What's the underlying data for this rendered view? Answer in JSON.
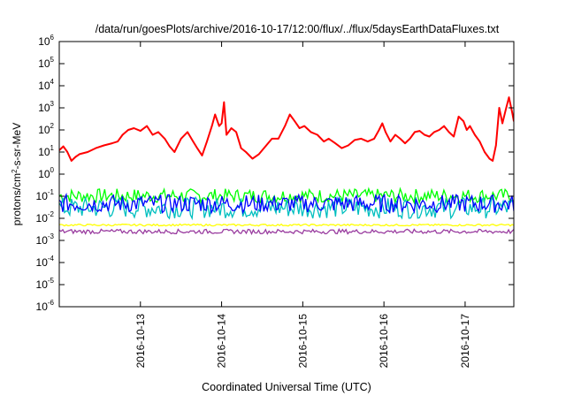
{
  "chart_data": {
    "type": "line",
    "title": "/data/run/goesPlots/archive/2016-10-17/12:00/flux/../flux/5daysEarthDataFluxes.txt",
    "xlabel": "Coordinated Universal Time (UTC)",
    "ylabel": {
      "pre": "protons/cm",
      "sup": "2",
      "post": "-s-sr-MeV"
    },
    "scale_y": "log",
    "xlim": [
      12.0,
      17.6
    ],
    "ylim_exp": [
      -6,
      6
    ],
    "y_ticks": [
      {
        "base": "10",
        "exp": "-6"
      },
      {
        "base": "10",
        "exp": "-5"
      },
      {
        "base": "10",
        "exp": "-4"
      },
      {
        "base": "10",
        "exp": "-3"
      },
      {
        "base": "10",
        "exp": "-2"
      },
      {
        "base": "10",
        "exp": "-1"
      },
      {
        "base": "10",
        "exp": "0"
      },
      {
        "base": "10",
        "exp": "1"
      },
      {
        "base": "10",
        "exp": "2"
      },
      {
        "base": "10",
        "exp": "3"
      },
      {
        "base": "10",
        "exp": "4"
      },
      {
        "base": "10",
        "exp": "5"
      },
      {
        "base": "10",
        "exp": "6"
      }
    ],
    "x_ticks": [
      {
        "value": 13,
        "label": "2016-10-13"
      },
      {
        "value": 14,
        "label": "2016-10-14"
      },
      {
        "value": 15,
        "label": "2016-10-15"
      },
      {
        "value": 16,
        "label": "2016-10-16"
      },
      {
        "value": 17,
        "label": "2016-10-17"
      }
    ],
    "grid": false,
    "legend": "none",
    "series": [
      {
        "color": "#ff0000",
        "points": [
          [
            12.0,
            12
          ],
          [
            12.05,
            18
          ],
          [
            12.1,
            10
          ],
          [
            12.15,
            4
          ],
          [
            12.2,
            6
          ],
          [
            12.25,
            8
          ],
          [
            12.35,
            10
          ],
          [
            12.45,
            15
          ],
          [
            12.55,
            20
          ],
          [
            12.65,
            25
          ],
          [
            12.72,
            30
          ],
          [
            12.78,
            60
          ],
          [
            12.85,
            100
          ],
          [
            12.92,
            120
          ],
          [
            13.0,
            90
          ],
          [
            13.08,
            150
          ],
          [
            13.15,
            60
          ],
          [
            13.22,
            80
          ],
          [
            13.3,
            40
          ],
          [
            13.36,
            18
          ],
          [
            13.42,
            10
          ],
          [
            13.5,
            40
          ],
          [
            13.58,
            80
          ],
          [
            13.65,
            30
          ],
          [
            13.7,
            15
          ],
          [
            13.76,
            7
          ],
          [
            13.82,
            30
          ],
          [
            13.88,
            150
          ],
          [
            13.92,
            500
          ],
          [
            13.97,
            150
          ],
          [
            14.0,
            200
          ],
          [
            14.03,
            1800
          ],
          [
            14.06,
            60
          ],
          [
            14.12,
            120
          ],
          [
            14.18,
            80
          ],
          [
            14.24,
            15
          ],
          [
            14.3,
            10
          ],
          [
            14.38,
            5
          ],
          [
            14.46,
            8
          ],
          [
            14.55,
            20
          ],
          [
            14.62,
            40
          ],
          [
            14.7,
            40
          ],
          [
            14.78,
            150
          ],
          [
            14.84,
            500
          ],
          [
            14.9,
            250
          ],
          [
            14.96,
            120
          ],
          [
            15.02,
            150
          ],
          [
            15.1,
            80
          ],
          [
            15.18,
            60
          ],
          [
            15.26,
            30
          ],
          [
            15.32,
            40
          ],
          [
            15.4,
            25
          ],
          [
            15.48,
            15
          ],
          [
            15.56,
            20
          ],
          [
            15.64,
            35
          ],
          [
            15.72,
            40
          ],
          [
            15.8,
            30
          ],
          [
            15.88,
            40
          ],
          [
            15.94,
            100
          ],
          [
            15.98,
            200
          ],
          [
            16.02,
            80
          ],
          [
            16.08,
            30
          ],
          [
            16.14,
            60
          ],
          [
            16.2,
            40
          ],
          [
            16.26,
            25
          ],
          [
            16.32,
            40
          ],
          [
            16.38,
            80
          ],
          [
            16.44,
            90
          ],
          [
            16.5,
            60
          ],
          [
            16.56,
            50
          ],
          [
            16.62,
            80
          ],
          [
            16.68,
            100
          ],
          [
            16.74,
            150
          ],
          [
            16.8,
            80
          ],
          [
            16.86,
            50
          ],
          [
            16.92,
            400
          ],
          [
            16.98,
            250
          ],
          [
            17.02,
            100
          ],
          [
            17.06,
            150
          ],
          [
            17.12,
            60
          ],
          [
            17.18,
            30
          ],
          [
            17.24,
            10
          ],
          [
            17.3,
            5
          ],
          [
            17.34,
            4
          ],
          [
            17.38,
            20
          ],
          [
            17.42,
            1000
          ],
          [
            17.46,
            200
          ],
          [
            17.5,
            800
          ],
          [
            17.54,
            3000
          ],
          [
            17.58,
            600
          ],
          [
            17.6,
            250
          ]
        ]
      },
      {
        "color": "#00ff00",
        "band": [
          0.05,
          0.22
        ]
      },
      {
        "color": "#00bfbf",
        "band": [
          0.01,
          0.09
        ]
      },
      {
        "color": "#0000ff",
        "band": [
          0.018,
          0.12
        ]
      },
      {
        "color": "#ffff00",
        "band": [
          0.0045,
          0.0055
        ]
      },
      {
        "color": "#9a3da0",
        "band": [
          0.002,
          0.0032
        ]
      }
    ]
  }
}
